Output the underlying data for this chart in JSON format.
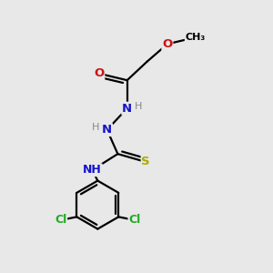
{
  "bg_color": "#e8e8e8",
  "colors": {
    "bond": "#000000",
    "C": "#000000",
    "N": "#1414CC",
    "O": "#CC1414",
    "S": "#AAAA00",
    "Cl": "#22AA22",
    "H": "#888888"
  },
  "lw": 1.6,
  "xlim": [
    0,
    10
  ],
  "ylim": [
    0,
    10
  ]
}
